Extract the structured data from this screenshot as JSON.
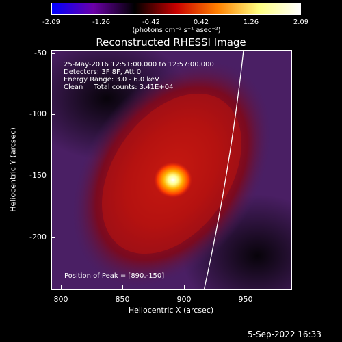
{
  "colorbar": {
    "ticks": [
      "-2.09",
      "-1.26",
      "-0.42",
      "0.42",
      "1.26",
      "2.09"
    ],
    "units_label": "(photons cm⁻² s⁻¹ asec⁻²)",
    "colors": [
      "#0000ff",
      "#6b00a8",
      "#000000",
      "#c80000",
      "#ff8000",
      "#ffff80",
      "#ffffff"
    ]
  },
  "title": "Reconstructed RHESSI Image",
  "info": {
    "line1": "25-May-2016 12:51:00.000 to 12:57:00.000",
    "line2": "Detectors: 3F 8F, Att 0",
    "line3": "Energy Range: 3.0 - 6.0 keV",
    "line4": "Clean     Total counts: 3.41E+04",
    "peak": "Position of Peak = [890,-150]"
  },
  "axes": {
    "xlabel": "Heliocentric X (arcsec)",
    "ylabel": "Heliocentric Y (arcsec)",
    "xticks": [
      "800",
      "850",
      "900",
      "950"
    ],
    "yticks": [
      "-50",
      "-100",
      "-150",
      "-200"
    ],
    "x_range": [
      792,
      987
    ],
    "y_range": [
      -240,
      -45
    ]
  },
  "image": {
    "peak_x": 890,
    "peak_y": -150,
    "background_color": "#4a1f64"
  },
  "timestamp": "5-Sep-2022 16:33"
}
